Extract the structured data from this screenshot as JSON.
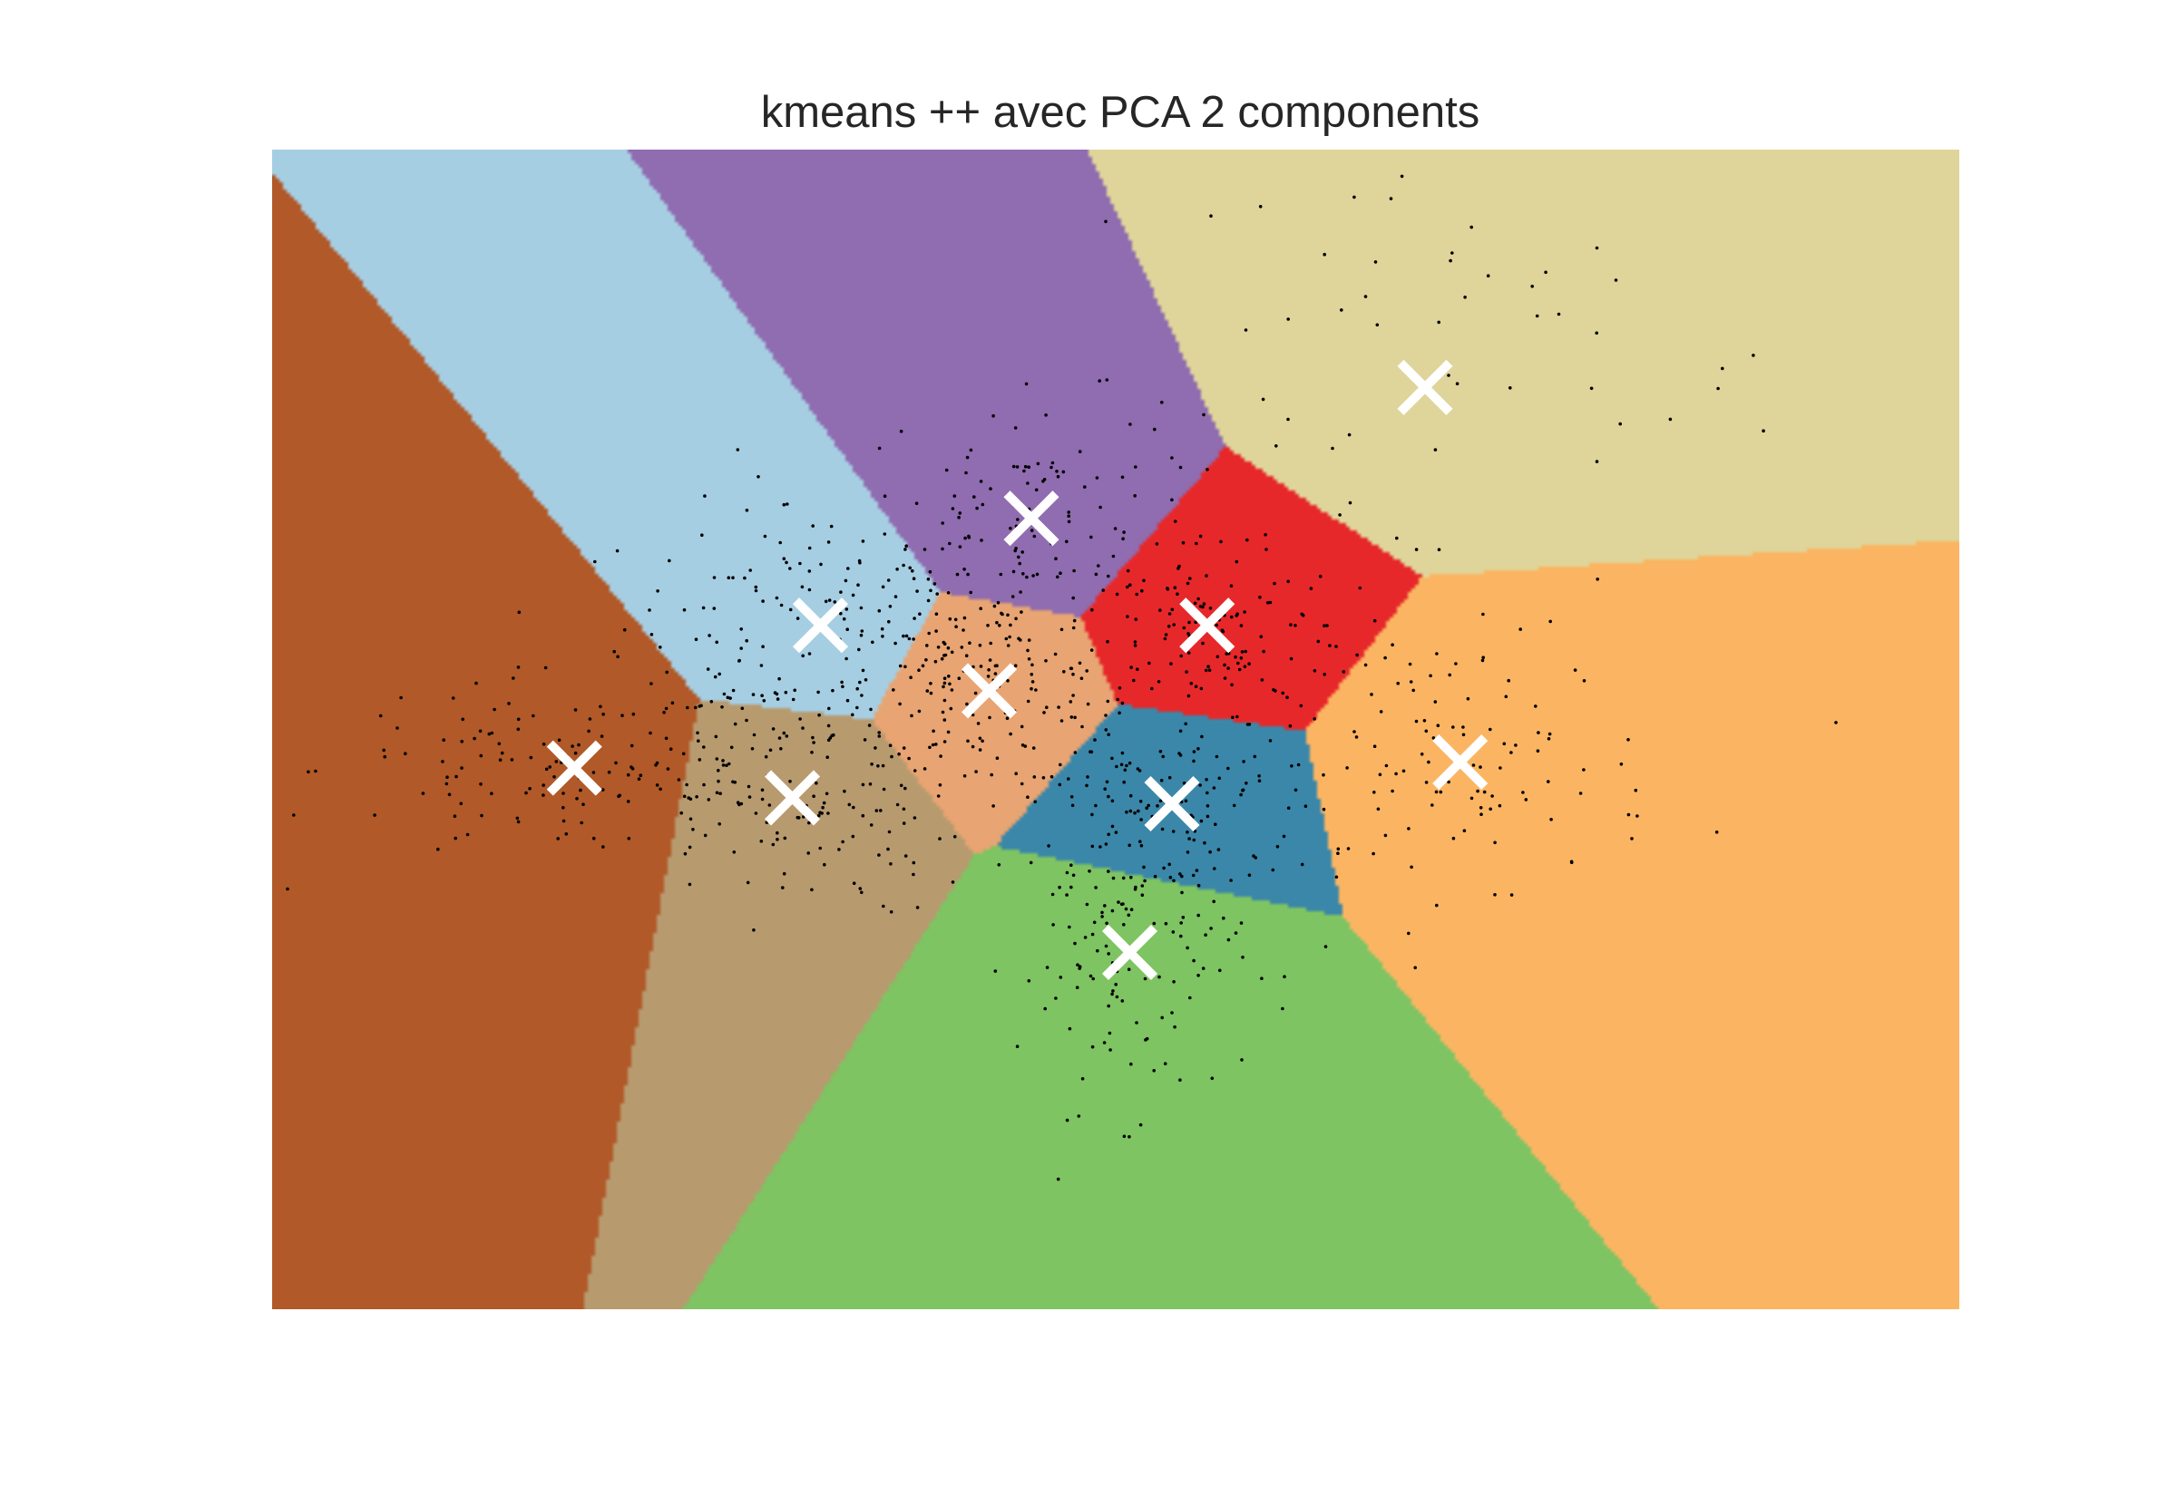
{
  "chart_data": {
    "type": "scatter",
    "title": "kmeans ++ avec PCA 2 components",
    "xlabel": "",
    "ylabel": "",
    "axes_visible": false,
    "grid": false,
    "legend": "none",
    "colormap": "Paired",
    "point_color": "#000000",
    "centroid_marker": "x",
    "centroid_color": "#ffffff",
    "clusters": [
      {
        "id": 0,
        "color": "#a6cee3",
        "centroid": [
          -5.7,
          2.0
        ],
        "n_points": 150,
        "spread": [
          1.4,
          1.0
        ]
      },
      {
        "id": 1,
        "color": "#906cb0",
        "centroid": [
          -2.7,
          3.8
        ],
        "n_points": 120,
        "spread": [
          1.2,
          1.0
        ]
      },
      {
        "id": 2,
        "color": "#dfd59a",
        "centroid": [
          2.9,
          6.0
        ],
        "n_points": 70,
        "spread": [
          2.6,
          2.2
        ]
      },
      {
        "id": 3,
        "color": "#b15928",
        "centroid": [
          -9.2,
          -0.4
        ],
        "n_points": 140,
        "spread": [
          1.8,
          0.8
        ]
      },
      {
        "id": 4,
        "color": "#e8a472",
        "centroid": [
          -3.3,
          0.9
        ],
        "n_points": 130,
        "spread": [
          0.9,
          0.8
        ]
      },
      {
        "id": 5,
        "color": "#e7282a",
        "centroid": [
          -0.2,
          2.0
        ],
        "n_points": 120,
        "spread": [
          1.0,
          0.8
        ]
      },
      {
        "id": 6,
        "color": "#b89a6f",
        "centroid": [
          -6.1,
          -0.9
        ],
        "n_points": 140,
        "spread": [
          1.2,
          1.0
        ]
      },
      {
        "id": 7,
        "color": "#3b87a9",
        "centroid": [
          -0.7,
          -1.0
        ],
        "n_points": 120,
        "spread": [
          1.1,
          0.8
        ]
      },
      {
        "id": 8,
        "color": "#fbb562",
        "centroid": [
          3.4,
          -0.3
        ],
        "n_points": 110,
        "spread": [
          1.4,
          1.1
        ]
      },
      {
        "id": 9,
        "color": "#7ec462",
        "centroid": [
          -1.3,
          -3.5
        ],
        "n_points": 130,
        "spread": [
          0.8,
          1.3
        ]
      }
    ],
    "xlim": [
      -13.5,
      10.5
    ],
    "ylim": [
      -9.5,
      10.0
    ]
  }
}
